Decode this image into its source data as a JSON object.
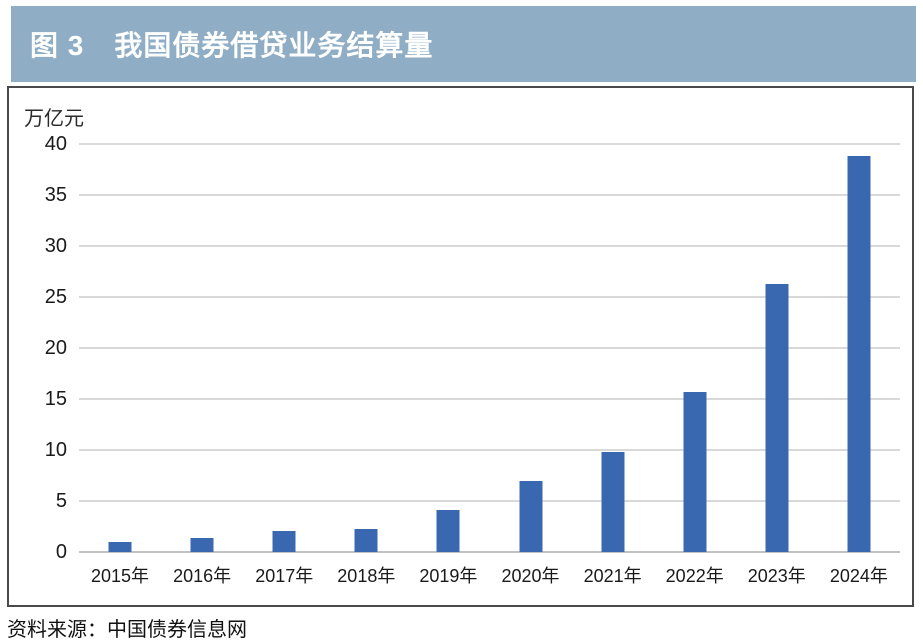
{
  "header": {
    "figure_label": "图 3",
    "title": "我国债券借贷业务结算量"
  },
  "footer": {
    "source": "资料来源：中国债券信息网"
  },
  "colors": {
    "header_bg": "#8fadc5",
    "header_text": "#ffffff",
    "bar": "#3a68b0",
    "gridline": "#d9d9d9",
    "baseline": "#c2c2c2",
    "panel_border": "#4a4a4a",
    "text": "#1c1c1c",
    "page_bg": "#ffffff"
  },
  "chart_data": {
    "type": "bar",
    "title": "图 3 我国债券借贷业务结算量",
    "unit_label": "万亿元",
    "ylabel": "万亿元",
    "categories": [
      "2015年",
      "2016年",
      "2017年",
      "2018年",
      "2019年",
      "2020年",
      "2021年",
      "2022年",
      "2023年",
      "2024年"
    ],
    "values": [
      1.0,
      1.4,
      2.1,
      2.3,
      4.1,
      7.0,
      9.8,
      15.7,
      26.3,
      38.8
    ],
    "ylim": [
      0,
      40
    ],
    "yticks": [
      0,
      5,
      10,
      15,
      20,
      25,
      30,
      35,
      40
    ],
    "grid": true,
    "legend_position": "none",
    "bar_color": "#3a68b0",
    "source": "资料来源：中国债券信息网"
  }
}
